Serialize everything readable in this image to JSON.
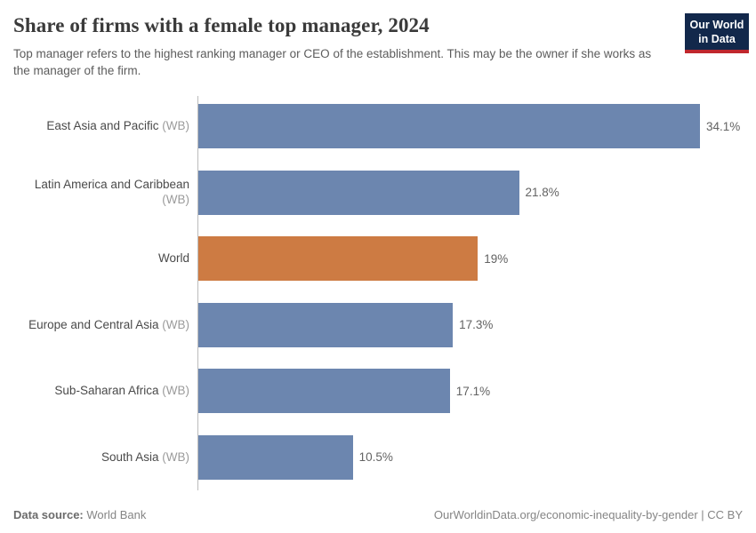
{
  "header": {
    "title": "Share of firms with a female top manager, 2024",
    "subtitle": "Top manager refers to the highest ranking manager or CEO of the establishment. This may be the owner if she works as the manager of the firm.",
    "logo": {
      "line1": "Our World",
      "line2": "in Data"
    }
  },
  "chart_data": {
    "type": "bar",
    "orientation": "horizontal",
    "title": "Share of firms with a female top manager, 2024",
    "unit": "%",
    "xlim": [
      0,
      37
    ],
    "grid": false,
    "legend": "none",
    "default_bar_color": "#6c86af",
    "highlight_bar_color": "#cd7b43",
    "axis_line_color": "#bcbcbc",
    "categories": [
      "East Asia and Pacific (WB)",
      "Latin America and Caribbean (WB)",
      "World",
      "Europe and Central Asia (WB)",
      "Sub-Saharan Africa (WB)",
      "South Asia (WB)"
    ],
    "values": [
      34.1,
      21.8,
      19,
      17.3,
      17.1,
      10.5
    ],
    "rows": [
      {
        "label": "East Asia and Pacific",
        "suffix": "(WB)",
        "value": 34.1,
        "value_label": "34.1%",
        "color": "#6c86af"
      },
      {
        "label": "Latin America and Caribbean",
        "suffix": "(WB)",
        "value": 21.8,
        "value_label": "21.8%",
        "color": "#6c86af"
      },
      {
        "label": "World",
        "suffix": "",
        "value": 19,
        "value_label": "19%",
        "color": "#cd7b43"
      },
      {
        "label": "Europe and Central Asia",
        "suffix": "(WB)",
        "value": 17.3,
        "value_label": "17.3%",
        "color": "#6c86af"
      },
      {
        "label": "Sub-Saharan Africa",
        "suffix": "(WB)",
        "value": 17.1,
        "value_label": "17.1%",
        "color": "#6c86af"
      },
      {
        "label": "South Asia",
        "suffix": "(WB)",
        "value": 10.5,
        "value_label": "10.5%",
        "color": "#6c86af"
      }
    ]
  },
  "footer": {
    "source_label": "Data source:",
    "source_value": "World Bank",
    "link": "OurWorldinData.org/economic-inequality-by-gender",
    "divider": " | ",
    "license": "CC BY"
  }
}
